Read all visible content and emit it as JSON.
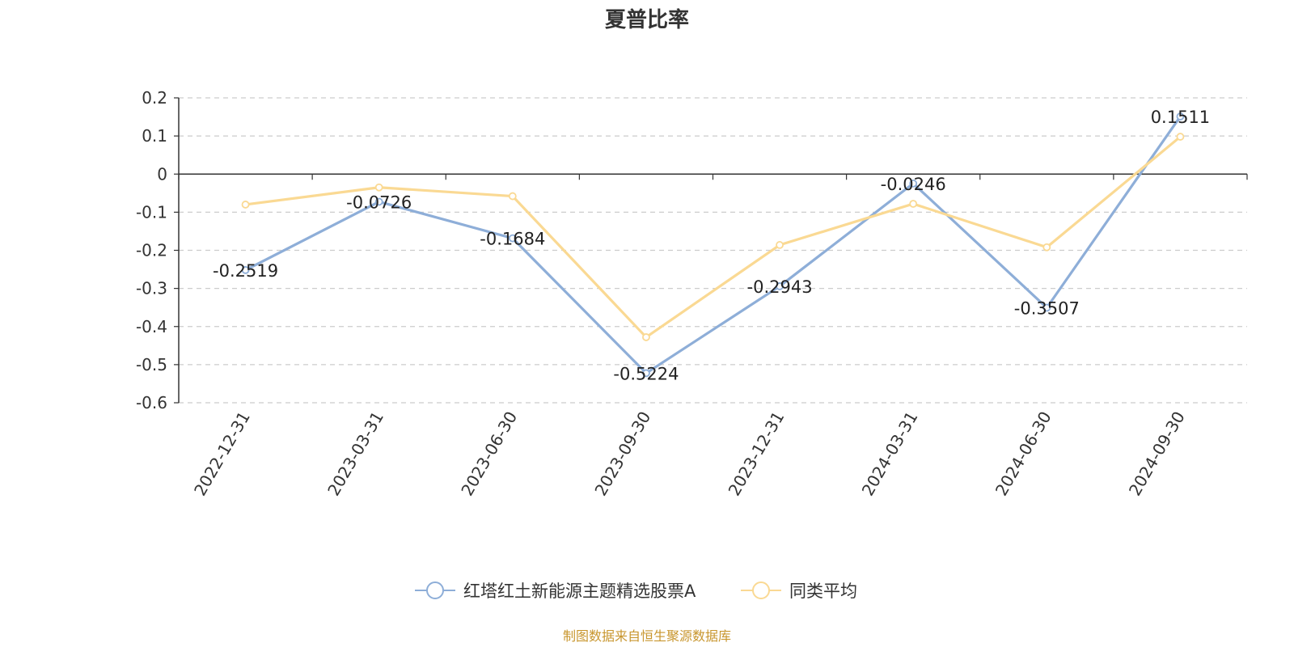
{
  "chart_data": {
    "type": "line",
    "title": "夏普比率",
    "categories": [
      "2022-12-31",
      "2023-03-31",
      "2023-06-30",
      "2023-09-30",
      "2023-12-31",
      "2024-03-31",
      "2024-06-30",
      "2024-09-30"
    ],
    "series": [
      {
        "name": "红塔红土新能源主题精选股票A",
        "color": "#8eaed8",
        "values": [
          -0.2519,
          -0.0726,
          -0.1684,
          -0.5224,
          -0.2943,
          -0.0246,
          -0.3507,
          0.1511
        ],
        "labels": [
          "-0.2519",
          "-0.0726",
          "-0.1684",
          "-0.5224",
          "-0.2943",
          "-0.0246",
          "-0.3507",
          "0.1511"
        ]
      },
      {
        "name": "同类平均",
        "color": "#fad993",
        "values": [
          -0.08,
          -0.035,
          -0.058,
          -0.428,
          -0.186,
          -0.078,
          -0.192,
          0.098
        ]
      }
    ],
    "ylim": [
      -0.6,
      0.2
    ],
    "yticks": [
      0.2,
      0.1,
      0,
      -0.1,
      -0.2,
      -0.3,
      -0.4,
      -0.5,
      -0.6
    ],
    "ytick_labels": [
      "0.2",
      "0.1",
      "0",
      "-0.1",
      "-0.2",
      "-0.3",
      "-0.4",
      "-0.5",
      "-0.6"
    ],
    "grid": true,
    "legend_position": "bottom-center",
    "source": "制图数据来自恒生聚源数据库"
  }
}
